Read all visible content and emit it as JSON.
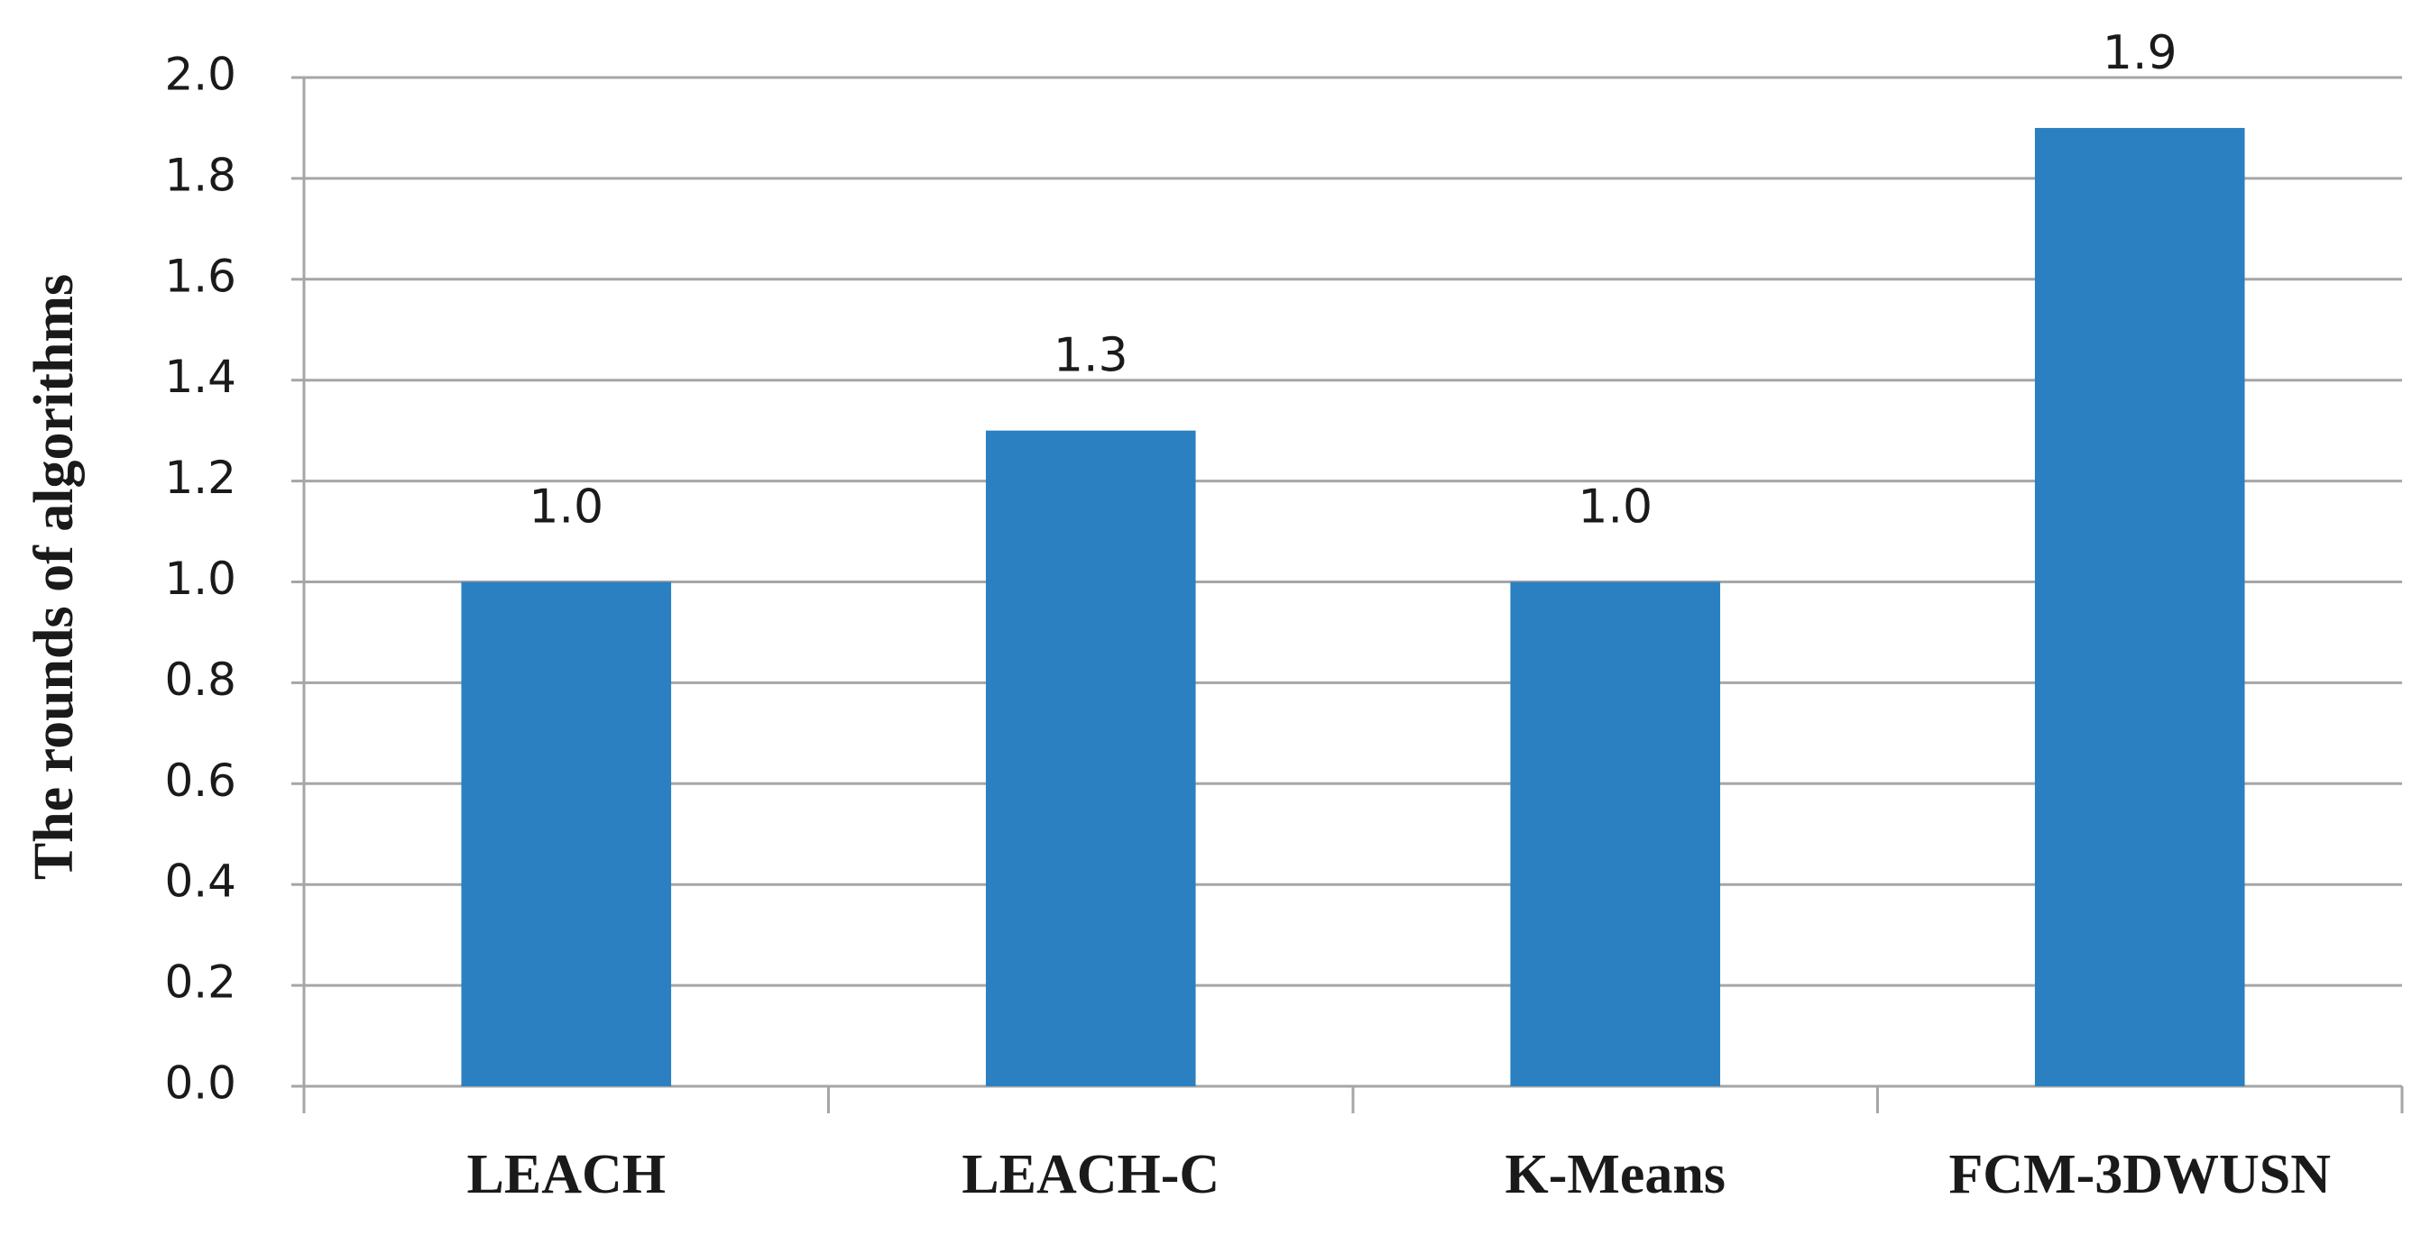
{
  "chart_data": {
    "type": "bar",
    "y_label": "The rounds of algorithms",
    "categories": [
      "LEACH",
      "LEACH-C",
      "K-Means",
      "FCM-3DWUSN"
    ],
    "values": [
      1,
      1.3,
      1,
      1.9
    ],
    "value_labels": [
      "1.0",
      "1.3",
      "1.0",
      "1.9"
    ],
    "color": "#2a80c0",
    "ylim": [
      0,
      2
    ],
    "yticks": [
      {
        "value": 0,
        "label": "0.0"
      },
      0.2,
      0.4,
      0.6,
      0.8,
      {
        "value": 1,
        "label": "1.0"
      },
      1.2,
      1.4,
      1.6,
      1.8,
      {
        "value": 2,
        "label": "2.0"
      }
    ],
    "grid": true
  }
}
